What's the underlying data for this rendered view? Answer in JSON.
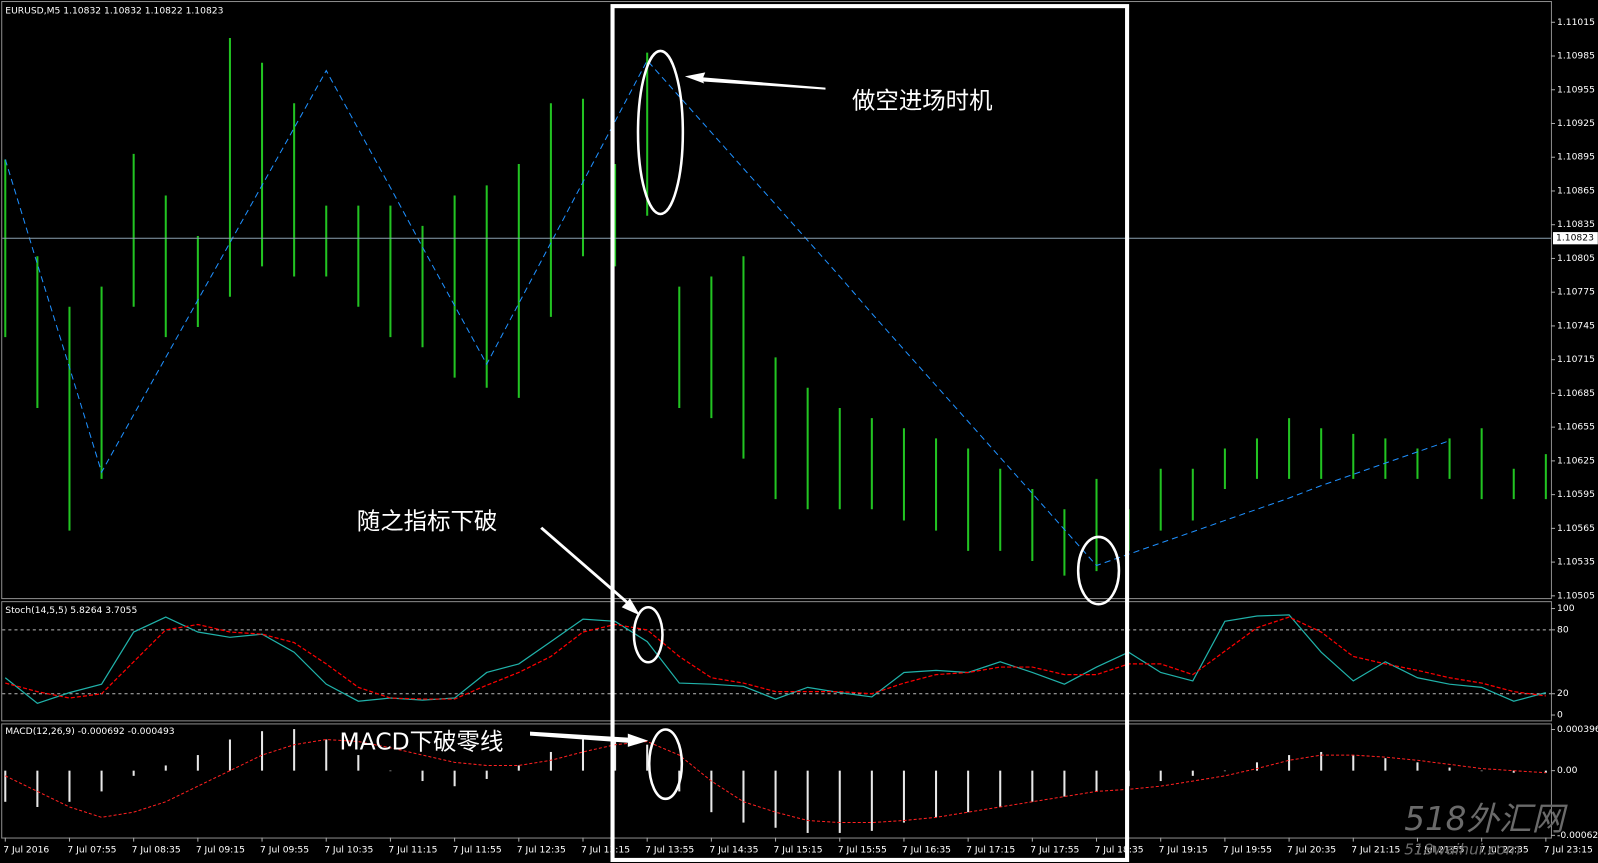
{
  "chart_data": [
    {
      "type": "hilo",
      "title": "EURUSD,M5  1.10832 1.10832 1.10822 1.10823",
      "categories": [
        "7 Jul 2016",
        null,
        "7 Jul 07:55",
        null,
        "7 Jul 08:35",
        null,
        "7 Jul 09:15",
        null,
        "7 Jul 09:55",
        null,
        "7 Jul 10:35",
        null,
        "7 Jul 11:15",
        null,
        "7 Jul 11:55",
        null,
        "7 Jul 12:35",
        null,
        "7 Jul 13:15",
        null,
        "7 Jul 13:55",
        null,
        "7 Jul 14:35",
        null,
        "7 Jul 15:15",
        null,
        "7 Jul 15:55",
        null,
        "7 Jul 16:35",
        null,
        "7 Jul 17:15",
        null,
        "7 Jul 17:55",
        null,
        "7 Jul 18:35",
        null,
        "7 Jul 19:15",
        null,
        "7 Jul 19:55",
        null,
        "7 Jul 20:35",
        null,
        "7 Jul 21:15",
        null,
        "7 Jul 21:55",
        null,
        "7 Jul 22:35",
        null,
        "7 Jul 23:15"
      ],
      "high": [
        1.10893,
        1.10807,
        1.10762,
        1.1078,
        1.10898,
        1.10861,
        1.10825,
        1.11001,
        1.10979,
        1.10943,
        1.10852,
        1.10852,
        1.10852,
        1.10834,
        1.10861,
        1.1087,
        1.10889,
        1.10943,
        1.10947,
        1.10889,
        1.10988,
        1.1078,
        1.10789,
        1.10807,
        1.10717,
        1.1069,
        1.10672,
        1.10663,
        1.10654,
        1.10645,
        1.10636,
        1.10618,
        1.106,
        1.10582,
        1.10609,
        1.10582,
        1.10618,
        1.10618,
        1.10636,
        1.10645,
        1.10663,
        1.10654,
        1.10649,
        1.10645,
        1.10636,
        1.10645,
        1.10654,
        1.10618,
        1.10631
      ],
      "low": [
        1.10735,
        1.10672,
        1.10563,
        1.10609,
        1.10762,
        1.10735,
        1.10744,
        1.10771,
        1.10798,
        1.10789,
        1.10789,
        1.10762,
        1.10735,
        1.10726,
        1.10699,
        1.1069,
        1.10681,
        1.10753,
        1.10807,
        1.10798,
        1.10843,
        1.10672,
        1.10663,
        1.10627,
        1.10591,
        1.10582,
        1.10582,
        1.10582,
        1.10572,
        1.10563,
        1.10545,
        1.10545,
        1.10536,
        1.10523,
        1.10527,
        1.10545,
        1.10563,
        1.10572,
        1.106,
        1.10609,
        1.10609,
        1.10609,
        1.10609,
        1.10609,
        1.10609,
        1.10609,
        1.10591,
        1.10591,
        1.10591
      ],
      "color": "#22c322",
      "zigzag": {
        "color": "#1e90ff",
        "values": [
          1.10893,
          1.108,
          1.10708,
          1.10615,
          1.10666,
          1.10717,
          1.10768,
          1.10819,
          1.1087,
          1.10921,
          1.10972,
          1.1092,
          1.10868,
          1.10815,
          1.10763,
          1.10711,
          1.10765,
          1.10819,
          1.10873,
          1.10927,
          1.10981,
          1.10949,
          1.10917,
          1.10885,
          1.10853,
          1.10821,
          1.10789,
          1.10756,
          1.10724,
          1.10692,
          1.1066,
          1.10628,
          1.10596,
          1.10564,
          1.10532,
          1.10542,
          1.10552,
          1.10562,
          1.10572,
          1.10582,
          1.10592,
          1.10603,
          1.10613,
          1.10623,
          1.10633,
          1.10643,
          null,
          null,
          null
        ]
      },
      "last_price": 1.10823,
      "ylim": [
        1.10503,
        1.11033
      ],
      "yticks": [
        1.11015,
        1.10985,
        1.10955,
        1.10925,
        1.10895,
        1.10865,
        1.10835,
        1.10805,
        1.10775,
        1.10745,
        1.10715,
        1.10685,
        1.10655,
        1.10625,
        1.10595,
        1.10565,
        1.10535,
        1.10505
      ]
    },
    {
      "type": "line",
      "title": "Stoch(14,5,5) 5.8264 3.7055",
      "series": [
        {
          "color": "#20b2aa",
          "values": [
            35,
            11,
            21,
            29,
            78,
            92,
            78,
            73,
            76,
            59,
            29,
            13,
            16,
            14,
            16,
            40,
            48,
            69,
            90,
            88,
            69,
            30,
            29,
            27,
            15,
            26,
            21,
            17,
            40,
            42,
            40,
            50,
            40,
            29,
            45,
            59,
            40,
            32,
            88,
            93,
            94,
            59,
            32,
            50,
            35,
            29,
            26,
            13,
            21
          ]
        },
        {
          "color": "#ff0000",
          "values": [
            30,
            22,
            16,
            20,
            50,
            80,
            85,
            78,
            76,
            68,
            48,
            26,
            16,
            15,
            15,
            28,
            40,
            55,
            78,
            85,
            80,
            55,
            35,
            30,
            22,
            22,
            22,
            20,
            30,
            38,
            40,
            45,
            45,
            38,
            38,
            48,
            48,
            38,
            60,
            82,
            92,
            78,
            55,
            48,
            42,
            35,
            30,
            22,
            18
          ]
        }
      ],
      "levels": [
        80,
        20
      ],
      "ylim": [
        -5,
        106
      ],
      "yticks": [
        100,
        80,
        20,
        0
      ]
    },
    {
      "type": "macd",
      "title": "MACD(12,26,9) -0.000692 -0.000493",
      "histogram": {
        "color": "#e8e8e8",
        "values": [
          -0.0003,
          -0.00035,
          -0.0003,
          -0.0002,
          -5e-05,
          5e-05,
          0.00015,
          0.0003,
          0.00038,
          0.0004,
          0.0003,
          0.00015,
          0.0,
          -0.0001,
          -0.00015,
          -8e-05,
          5e-05,
          0.00018,
          0.0003,
          0.0003,
          0.00025,
          -0.0002,
          -0.0004,
          -0.0005,
          -0.00055,
          -0.0006,
          -0.0006,
          -0.00058,
          -0.0005,
          -0.00045,
          -0.0004,
          -0.00035,
          -0.0003,
          -0.00025,
          -0.0002,
          -0.00015,
          -0.0001,
          -5e-05,
          0.0,
          8e-05,
          0.00015,
          0.00018,
          0.00015,
          0.00012,
          8e-05,
          3e-05,
          0.0,
          -2e-05,
          -2e-05
        ]
      },
      "signal": {
        "color": "#ff2020",
        "values": [
          -5e-05,
          -0.0002,
          -0.00035,
          -0.00045,
          -0.0004,
          -0.0003,
          -0.00015,
          0.0,
          0.00015,
          0.00025,
          0.0003,
          0.00028,
          0.00022,
          0.00015,
          8e-05,
          5e-05,
          5e-05,
          0.0001,
          0.00018,
          0.00025,
          0.00028,
          0.00015,
          -0.0001,
          -0.0003,
          -0.0004,
          -0.00048,
          -0.0005,
          -0.0005,
          -0.00048,
          -0.00045,
          -0.0004,
          -0.00035,
          -0.0003,
          -0.00025,
          -0.0002,
          -0.00018,
          -0.00015,
          -0.0001,
          -5e-05,
          2e-05,
          0.0001,
          0.00015,
          0.00015,
          0.00013,
          0.0001,
          6e-05,
          2e-05,
          0.0,
          -2e-05
        ]
      },
      "ylim": [
        -0.000644,
        0.000445
      ],
      "yticks": [
        {
          "value": 0.000396,
          "label": "0.000396"
        },
        {
          "value": 0,
          "label": "0.00"
        },
        -0.000623
      ]
    }
  ],
  "annotations": [
    "做空进场时机",
    "随之指标下破",
    "MACD下破零线"
  ],
  "watermark": [
    "518外汇网",
    "518waihui.com"
  ]
}
